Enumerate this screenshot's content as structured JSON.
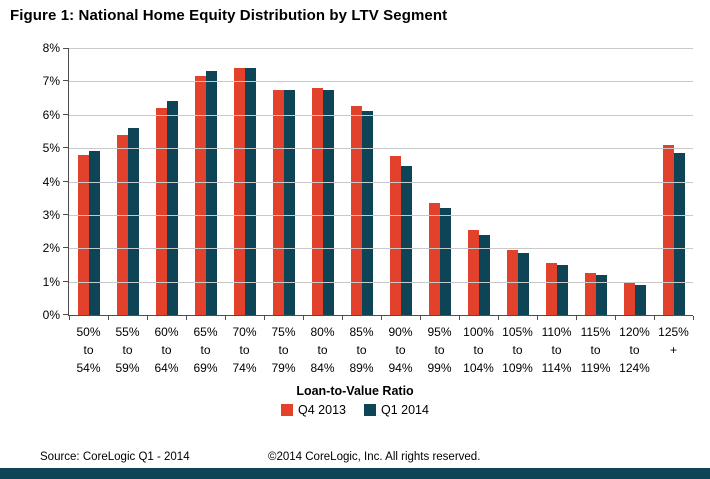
{
  "title": "Figure 1: National Home Equity Distribution by LTV Segment",
  "footer": {
    "source": "Source: CoreLogic Q1 - 2014",
    "copyright": "©2014 CoreLogic, Inc. All rights reserved."
  },
  "colors": {
    "q4_2013": "#e2422c",
    "q1_2014": "#0d4557",
    "grid": "#c9c9c9",
    "axis": "#4d4d4d",
    "footer_bar": "#0d4557"
  },
  "chart_data": {
    "type": "bar",
    "title": "Figure 1: National Home Equity Distribution by LTV Segment",
    "xlabel": "Loan-to-Value  Ratio",
    "ylabel": "",
    "ylim": [
      0,
      8
    ],
    "ytick_step": 1,
    "ytick_labels": [
      "0%",
      "1%",
      "2%",
      "3%",
      "4%",
      "5%",
      "6%",
      "7%",
      "8%"
    ],
    "grid": true,
    "legend_position": "bottom",
    "categories": [
      "50%\nto\n54%",
      "55%\nto\n59%",
      "60%\nto\n64%",
      "65%\nto\n69%",
      "70%\nto\n74%",
      "75%\nto\n79%",
      "80%\nto\n84%",
      "85%\nto\n89%",
      "90%\nto\n94%",
      "95%\nto\n99%",
      "100%\nto\n104%",
      "105%\nto\n109%",
      "110%\nto\n114%",
      "115%\nto\n119%",
      "120%\nto\n124%",
      "125%\n+"
    ],
    "series": [
      {
        "name": "Q4 2013",
        "color": "#e2422c",
        "values": [
          4.8,
          5.4,
          6.2,
          7.15,
          7.4,
          6.75,
          6.8,
          6.25,
          4.75,
          3.35,
          2.55,
          1.95,
          1.55,
          1.25,
          0.95,
          5.1
        ]
      },
      {
        "name": "Q1 2014",
        "color": "#0d4557",
        "values": [
          4.9,
          5.6,
          6.4,
          7.3,
          7.4,
          6.75,
          6.75,
          6.1,
          4.45,
          3.2,
          2.4,
          1.85,
          1.5,
          1.2,
          0.9,
          4.85
        ]
      }
    ]
  }
}
